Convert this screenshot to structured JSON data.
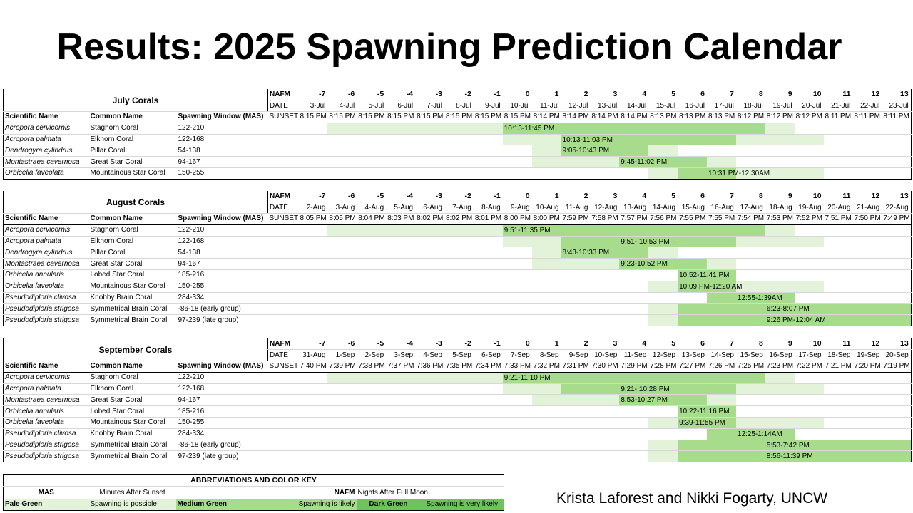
{
  "title": "Results: 2025 Spawning Prediction Calendar",
  "labels": {
    "nafm": "NAFM",
    "date": "DATE",
    "sunset": "SUNSET",
    "scientific_name": "Scientific Name",
    "common_name": "Common Name",
    "spawning_window": "Spawning Window (MAS)"
  },
  "nafm_values": [
    "-7",
    "-6",
    "-5",
    "-4",
    "-3",
    "-2",
    "-1",
    "0",
    "1",
    "2",
    "3",
    "4",
    "5",
    "6",
    "7",
    "8",
    "9",
    "10",
    "11",
    "12",
    "13"
  ],
  "colors": {
    "pale": "#e2f3da",
    "medium": "#a6dc8c",
    "dark": "#6cc45a"
  },
  "calendars": [
    {
      "title": "July Corals",
      "dates": [
        "3-Jul",
        "4-Jul",
        "5-Jul",
        "6-Jul",
        "7-Jul",
        "8-Jul",
        "9-Jul",
        "10-Jul",
        "11-Jul",
        "12-Jul",
        "13-Jul",
        "14-Jul",
        "15-Jul",
        "16-Jul",
        "17-Jul",
        "18-Jul",
        "19-Jul",
        "20-Jul",
        "21-Jul",
        "22-Jul",
        "23-Jul"
      ],
      "sunsets": [
        "8:15 PM",
        "8:15 PM",
        "8:15 PM",
        "8:15 PM",
        "8:15 PM",
        "8:15 PM",
        "8:15 PM",
        "8:15 PM",
        "8:14 PM",
        "8:14 PM",
        "8:14 PM",
        "8:14 PM",
        "8:13 PM",
        "8:13 PM",
        "8:13 PM",
        "8:12 PM",
        "8:12 PM",
        "8:12 PM",
        "8:11 PM",
        "8:11 PM",
        "8:11 PM"
      ],
      "species": [
        {
          "scientific": "Acropora cervicornis",
          "common": "Staghorn Coral",
          "window": "122-210",
          "time_window": "10:13-11:45 PM",
          "level": [
            "",
            "pale",
            "pale",
            "pale",
            "pale",
            "pale",
            "pale",
            "medium",
            "medium",
            "medium",
            "medium",
            "medium",
            "medium",
            "medium",
            "medium",
            "medium",
            "pale",
            "",
            "",
            "",
            ""
          ],
          "label_at": 7
        },
        {
          "scientific": "Acropora palmata",
          "common": "Elkhorn Coral",
          "window": "122-168",
          "time_window": "10:13-11:03 PM",
          "level": [
            "",
            "",
            "",
            "",
            "",
            "",
            "",
            "pale",
            "pale",
            "medium",
            "medium",
            "medium",
            "medium",
            "medium",
            "medium",
            "pale",
            "pale",
            "pale",
            "",
            "",
            ""
          ],
          "label_at": 9
        },
        {
          "scientific": "Dendrogyra cylindrus",
          "common": "Pillar Coral",
          "window": "54-138",
          "time_window": "9:05-10:43 PM",
          "level": [
            "",
            "",
            "",
            "",
            "",
            "",
            "",
            "",
            "pale",
            "medium",
            "medium",
            "medium",
            "pale",
            "",
            "",
            "",
            "",
            "",
            "",
            "",
            ""
          ],
          "label_at": 9
        },
        {
          "scientific": "Montastraea cavernosa",
          "common": "Great Star Coral",
          "window": "94-167",
          "time_window": "9:45-11:02 PM",
          "level": [
            "",
            "",
            "",
            "",
            "",
            "",
            "",
            "",
            "pale",
            "pale",
            "pale",
            "medium",
            "medium",
            "medium",
            "pale",
            "",
            "",
            "",
            "",
            "",
            ""
          ],
          "label_at": 11
        },
        {
          "scientific": "Orbicella faveolata",
          "common": "Mountainous Star Coral",
          "window": "150-255",
          "time_window": "10:31 PM-12:30AM",
          "level": [
            "",
            "",
            "",
            "",
            "",
            "",
            "",
            "",
            "",
            "",
            "",
            "",
            "pale",
            "medium",
            "medium",
            "pale",
            "pale",
            "pale",
            "",
            "",
            ""
          ],
          "label_at": 14
        }
      ]
    },
    {
      "title": "August Corals",
      "dates": [
        "2-Aug",
        "3-Aug",
        "4-Aug",
        "5-Aug",
        "6-Aug",
        "7-Aug",
        "8-Aug",
        "9-Aug",
        "10-Aug",
        "11-Aug",
        "12-Aug",
        "13-Aug",
        "14-Aug",
        "15-Aug",
        "16-Aug",
        "17-Aug",
        "18-Aug",
        "19-Aug",
        "20-Aug",
        "21-Aug",
        "22-Aug"
      ],
      "sunsets": [
        "8:05 PM",
        "8:05 PM",
        "8:04 PM",
        "8:03 PM",
        "8:02 PM",
        "8:02 PM",
        "8:01 PM",
        "8:00 PM",
        "8:00 PM",
        "7:59 PM",
        "7:58 PM",
        "7:57 PM",
        "7:56 PM",
        "7:55 PM",
        "7:55 PM",
        "7:54 PM",
        "7:53 PM",
        "7:52 PM",
        "7:51 PM",
        "7:50 PM",
        "7:49 PM"
      ],
      "species": [
        {
          "scientific": "Acropora cervicornis",
          "common": "Staghorn Coral",
          "window": "122-210",
          "time_window": "9:51-11:35 PM",
          "level": [
            "",
            "pale",
            "pale",
            "pale",
            "pale",
            "pale",
            "pale",
            "medium",
            "medium",
            "medium",
            "medium",
            "medium",
            "medium",
            "medium",
            "medium",
            "medium",
            "pale",
            "",
            "",
            "",
            ""
          ],
          "label_at": 7
        },
        {
          "scientific": "Acropora palmata",
          "common": "Elkhorn Coral",
          "window": "122-168",
          "time_window": "9:51- 10:53 PM",
          "level": [
            "",
            "",
            "",
            "",
            "",
            "",
            "",
            "pale",
            "pale",
            "medium",
            "medium",
            "medium",
            "medium",
            "medium",
            "medium",
            "pale",
            "pale",
            "pale",
            "",
            "",
            ""
          ],
          "label_at": 11
        },
        {
          "scientific": "Dendrogyra cylindrus",
          "common": "Pillar Coral",
          "window": "54-138",
          "time_window": "8:43-10:33 PM",
          "level": [
            "",
            "",
            "",
            "",
            "",
            "",
            "",
            "",
            "pale",
            "medium",
            "medium",
            "medium",
            "pale",
            "",
            "",
            "",
            "",
            "",
            "",
            "",
            ""
          ],
          "label_at": 9
        },
        {
          "scientific": "Montastraea cavernosa",
          "common": "Great Star Coral",
          "window": "94-167",
          "time_window": "9:23-10:52 PM",
          "level": [
            "",
            "",
            "",
            "",
            "",
            "",
            "",
            "",
            "pale",
            "pale",
            "pale",
            "medium",
            "medium",
            "medium",
            "pale",
            "",
            "",
            "",
            "",
            "",
            ""
          ],
          "label_at": 11
        },
        {
          "scientific": "Orbicella annularis",
          "common": "Lobed Star Coral",
          "window": "185-216",
          "time_window": "10:52-11:41 PM",
          "level": [
            "",
            "",
            "",
            "",
            "",
            "",
            "",
            "",
            "",
            "",
            "",
            "",
            "",
            "medium",
            "medium",
            "",
            "",
            "",
            "",
            "",
            ""
          ],
          "label_at": 13
        },
        {
          "scientific": "Orbicella faveolata",
          "common": "Mountainous Star Coral",
          "window": "150-255",
          "time_window": "10:09 PM-12:20 AM",
          "level": [
            "",
            "",
            "",
            "",
            "",
            "",
            "",
            "",
            "",
            "",
            "",
            "",
            "pale",
            "medium",
            "medium",
            "pale",
            "pale",
            "pale",
            "",
            "",
            ""
          ],
          "label_at": 13
        },
        {
          "scientific": "Pseudodiploria clivosa",
          "common": "Knobby Brain Coral",
          "window": "284-334",
          "time_window": "12:55-1:39AM",
          "level": [
            "",
            "",
            "",
            "",
            "",
            "",
            "",
            "",
            "",
            "",
            "",
            "",
            "",
            "",
            "medium",
            "medium",
            "medium",
            "",
            "",
            "",
            ""
          ],
          "label_at": 15
        },
        {
          "scientific": "Pseudodiploria strigosa",
          "common": "Symmetrical Brain Coral",
          "window": "-86-18 (early group)",
          "time_window": "6:23-8:07 PM",
          "level": [
            "",
            "",
            "",
            "",
            "",
            "",
            "",
            "",
            "",
            "",
            "",
            "",
            "pale",
            "medium",
            "medium",
            "medium",
            "medium",
            "medium",
            "medium",
            "medium",
            "medium"
          ],
          "label_at": 16
        },
        {
          "scientific": "Pseudodiploria strigosa",
          "common": "Symmetrical Brain Coral",
          "window": "97-239 (late group)",
          "time_window": "9:26 PM-12:04 AM",
          "level": [
            "",
            "",
            "",
            "",
            "",
            "",
            "",
            "",
            "",
            "",
            "",
            "",
            "pale",
            "medium",
            "medium",
            "medium",
            "medium",
            "medium",
            "medium",
            "medium",
            "medium"
          ],
          "label_at": 16
        }
      ]
    },
    {
      "title": "September Corals",
      "dates": [
        "31-Aug",
        "1-Sep",
        "2-Sep",
        "3-Sep",
        "4-Sep",
        "5-Sep",
        "6-Sep",
        "7-Sep",
        "8-Sep",
        "9-Sep",
        "10-Sep",
        "11-Sep",
        "12-Sep",
        "13-Sep",
        "14-Sep",
        "15-Sep",
        "16-Sep",
        "17-Sep",
        "18-Sep",
        "19-Sep",
        "20-Sep"
      ],
      "sunsets": [
        "7:40 PM",
        "7:39 PM",
        "7:38 PM",
        "7:37 PM",
        "7:36 PM",
        "7:35 PM",
        "7:34 PM",
        "7:33 PM",
        "7:32 PM",
        "7:31 PM",
        "7:30 PM",
        "7:29 PM",
        "7:28 PM",
        "7:27 PM",
        "7:26 PM",
        "7:25 PM",
        "7:23 PM",
        "7:22 PM",
        "7:21 PM",
        "7:20 PM",
        "7:19 PM"
      ],
      "species": [
        {
          "scientific": "Acropora cervicornis",
          "common": "Staghorn Coral",
          "window": "122-210",
          "time_window": "9:21-11:10 PM",
          "level": [
            "",
            "pale",
            "pale",
            "pale",
            "pale",
            "pale",
            "pale",
            "medium",
            "medium",
            "medium",
            "medium",
            "medium",
            "medium",
            "medium",
            "medium",
            "medium",
            "pale",
            "",
            "",
            "",
            ""
          ],
          "label_at": 7
        },
        {
          "scientific": "Acropora palmata",
          "common": "Elkhorn Coral",
          "window": "122-168",
          "time_window": "9:21- 10:28 PM",
          "level": [
            "",
            "",
            "",
            "",
            "",
            "",
            "",
            "pale",
            "pale",
            "medium",
            "medium",
            "medium",
            "medium",
            "medium",
            "medium",
            "pale",
            "pale",
            "pale",
            "",
            "",
            ""
          ],
          "label_at": 11
        },
        {
          "scientific": "Montastraea cavernosa",
          "common": "Great Star Coral",
          "window": "94-167",
          "time_window": "8:53-10:27 PM",
          "level": [
            "",
            "",
            "",
            "",
            "",
            "",
            "",
            "",
            "pale",
            "pale",
            "pale",
            "medium",
            "medium",
            "medium",
            "pale",
            "",
            "",
            "",
            "",
            "",
            ""
          ],
          "label_at": 11
        },
        {
          "scientific": "Orbicella annularis",
          "common": "Lobed Star Coral",
          "window": "185-216",
          "time_window": "10:22-11:16 PM",
          "level": [
            "",
            "",
            "",
            "",
            "",
            "",
            "",
            "",
            "",
            "",
            "",
            "",
            "",
            "medium",
            "medium",
            "",
            "",
            "",
            "",
            "",
            ""
          ],
          "label_at": 13
        },
        {
          "scientific": "Orbicella faveolata",
          "common": "Mountainous Star Coral",
          "window": "150-255",
          "time_window": "9:39-11:55 PM",
          "level": [
            "",
            "",
            "",
            "",
            "",
            "",
            "",
            "",
            "",
            "",
            "",
            "",
            "pale",
            "medium",
            "medium",
            "pale",
            "pale",
            "pale",
            "",
            "",
            ""
          ],
          "label_at": 13
        },
        {
          "scientific": "Pseudodiploria clivosa",
          "common": "Knobby Brain Coral",
          "window": "284-334",
          "time_window": "12:25-1:14AM",
          "level": [
            "",
            "",
            "",
            "",
            "",
            "",
            "",
            "",
            "",
            "",
            "",
            "",
            "",
            "",
            "medium",
            "medium",
            "medium",
            "",
            "",
            "",
            ""
          ],
          "label_at": 15
        },
        {
          "scientific": "Pseudodiploria strigosa",
          "common": "Symmetrical Brain Coral",
          "window": "-86-18 (early group)",
          "time_window": "5:53-7:42 PM",
          "level": [
            "",
            "",
            "",
            "",
            "",
            "",
            "",
            "",
            "",
            "",
            "",
            "",
            "pale",
            "medium",
            "medium",
            "medium",
            "medium",
            "medium",
            "medium",
            "medium",
            "medium"
          ],
          "label_at": 16
        },
        {
          "scientific": "Pseudodiploria strigosa",
          "common": "Symmetrical Brain Coral",
          "window": "97-239 (late group)",
          "time_window": "8:56-11:39 PM",
          "level": [
            "",
            "",
            "",
            "",
            "",
            "",
            "",
            "",
            "",
            "",
            "",
            "",
            "pale",
            "medium",
            "medium",
            "medium",
            "medium",
            "medium",
            "medium",
            "medium",
            "medium"
          ],
          "label_at": 16
        }
      ]
    }
  ],
  "key": {
    "title": "ABBREVIATIONS AND COLOR KEY",
    "mas": "MAS",
    "mas_def": "Minutes After Sunset",
    "nafm": "NAFM",
    "nafm_def": "Nights After Full Moon",
    "pale_label": "Pale Green",
    "pale_def": "Spawning is possible",
    "medium_label": "Medium Green",
    "medium_def": "Spawning is likely",
    "dark_label": "Dark Green",
    "dark_def": "Spawning is very likely"
  },
  "credit": "Krista Laforest and Nikki Fogarty, UNCW"
}
